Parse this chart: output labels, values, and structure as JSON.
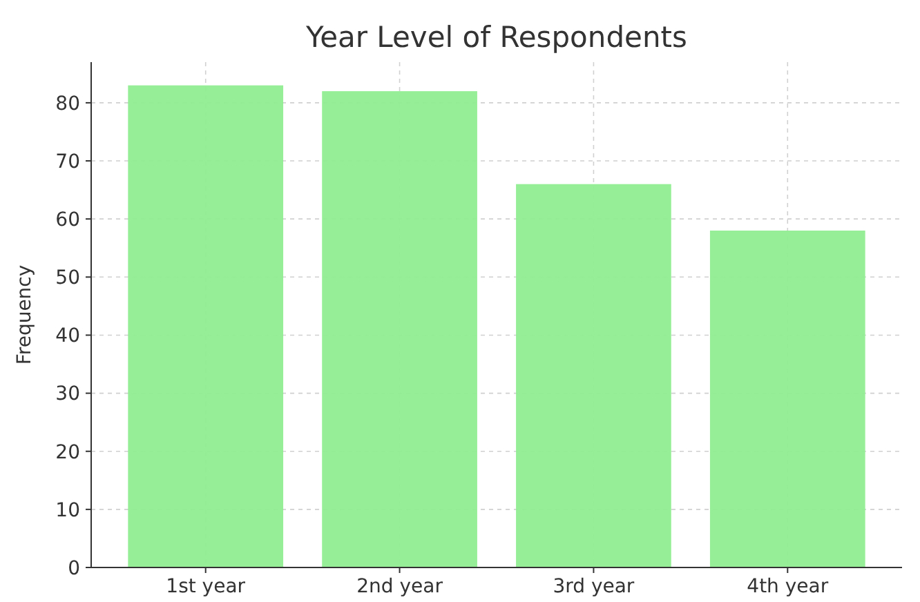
{
  "chart_data": {
    "type": "bar",
    "title": "Year Level of Respondents",
    "ylabel": "Frequency",
    "categories": [
      "1st year",
      "2nd year",
      "3rd year",
      "4th year"
    ],
    "values": [
      83,
      82,
      66,
      58
    ],
    "color": "#90ee90",
    "ylim": [
      0,
      87
    ],
    "yticks": [
      0,
      10,
      20,
      30,
      40,
      50,
      60,
      70,
      80
    ],
    "grid": true
  }
}
